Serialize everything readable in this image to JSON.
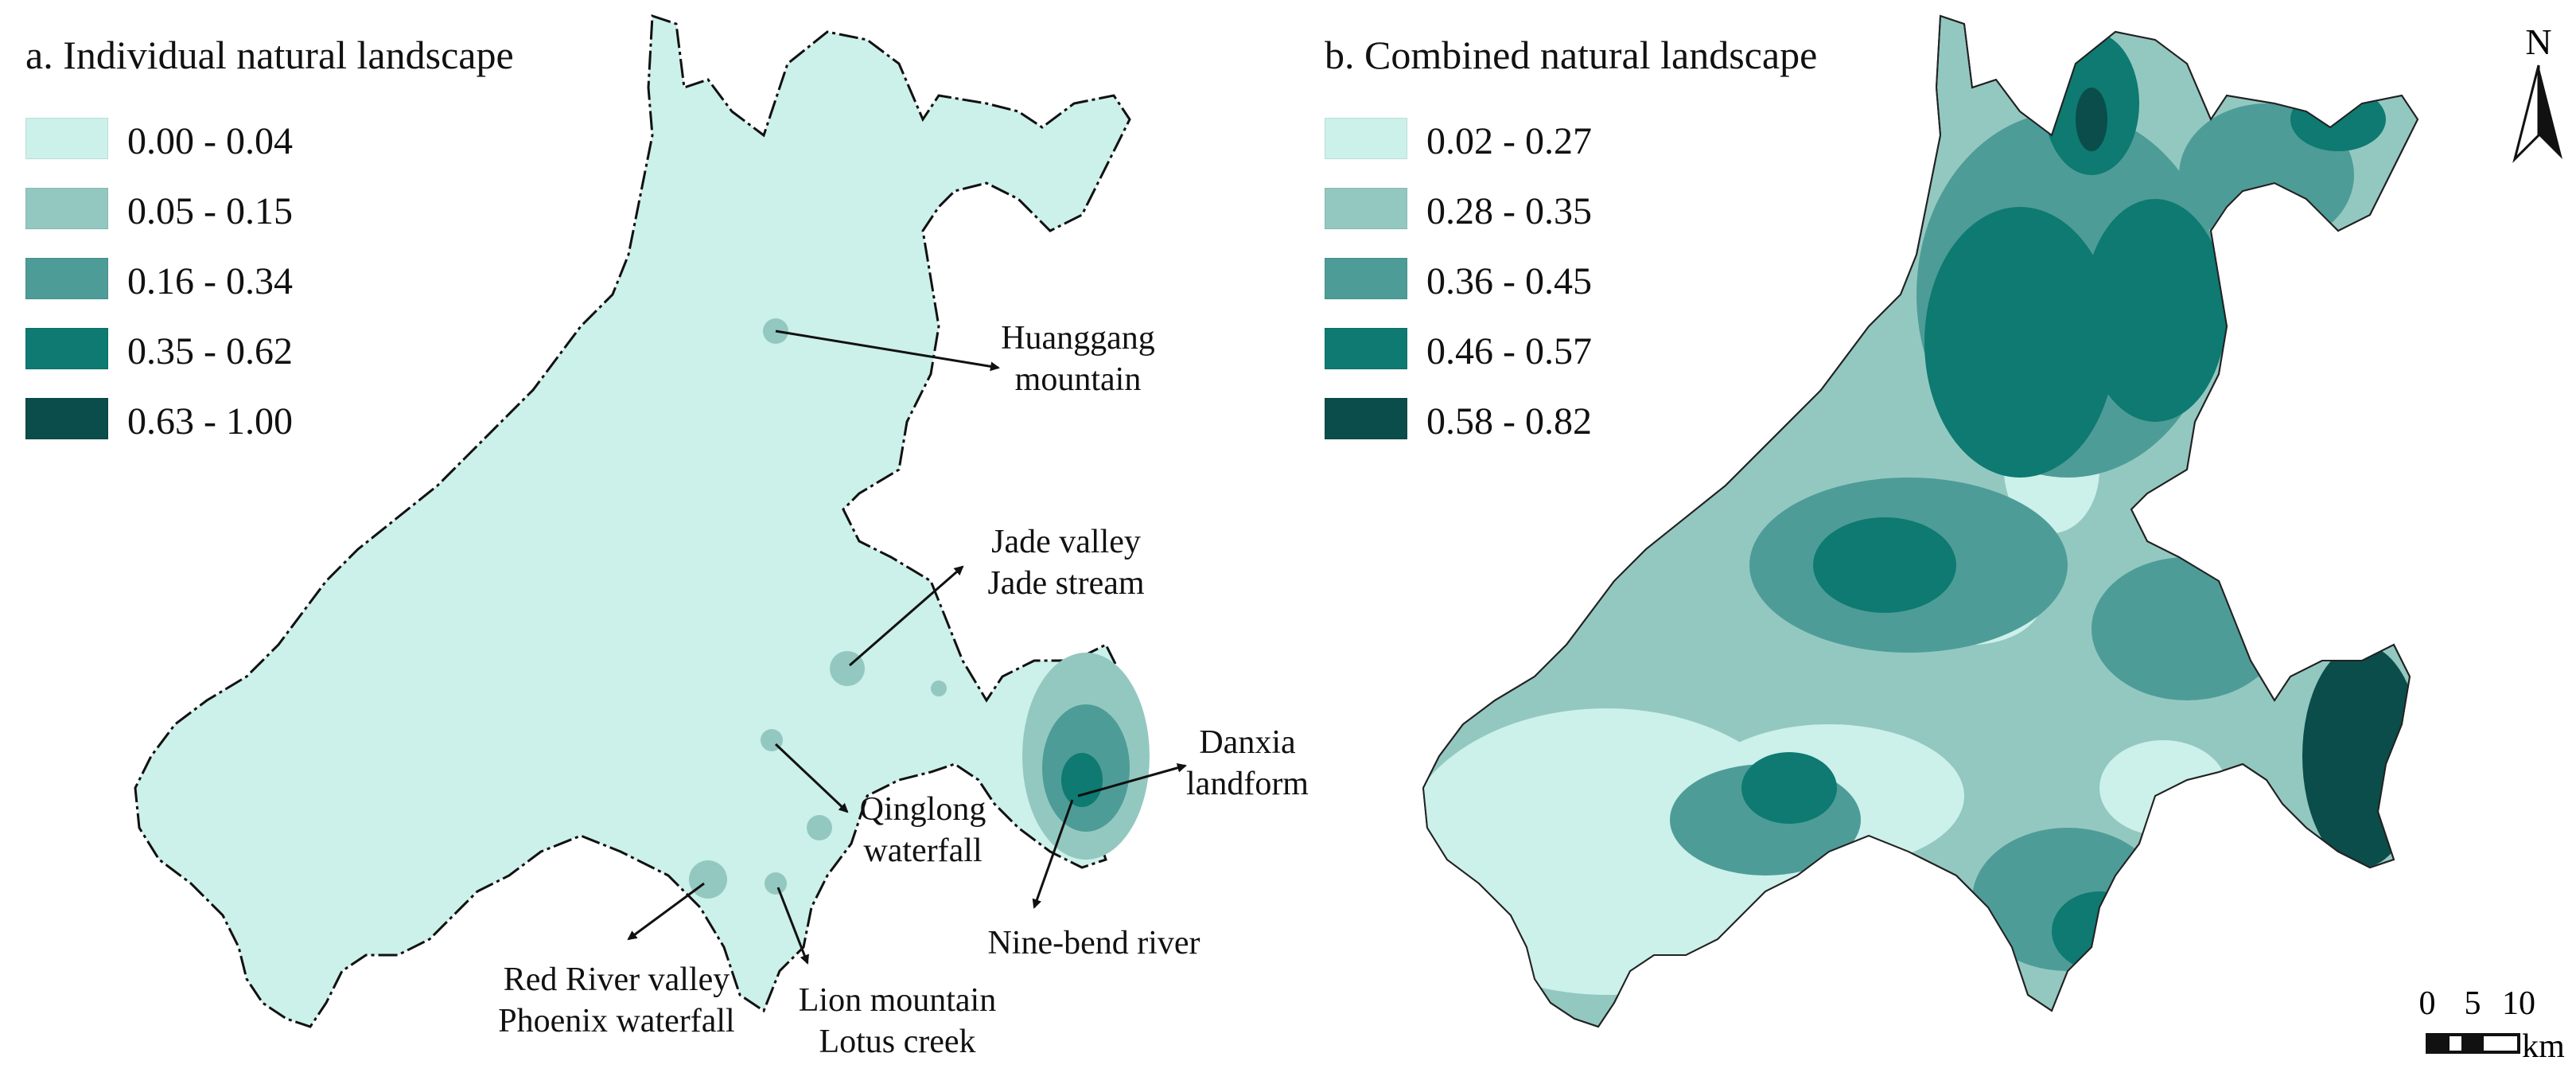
{
  "panel_a": {
    "title": "a. Individual natural landscape",
    "legend": [
      {
        "label": "0.00 - 0.04",
        "color": "#ccf0ea"
      },
      {
        "label": "0.05 - 0.15",
        "color": "#93c8c1"
      },
      {
        "label": "0.16 - 0.34",
        "color": "#4e9c97"
      },
      {
        "label": "0.35 - 0.62",
        "color": "#0e7a72"
      },
      {
        "label": "0.63 - 1.00",
        "color": "#0a4d4a"
      }
    ],
    "annotations": [
      {
        "line1": "Huanggang",
        "line2": "mountain"
      },
      {
        "line1": "Jade valley",
        "line2": "Jade stream"
      },
      {
        "line1": "Danxia",
        "line2": "landform"
      },
      {
        "line1": "Qinglong",
        "line2": "waterfall"
      },
      {
        "line1": "Nine-bend river",
        "line2": ""
      },
      {
        "line1": "Red River valley",
        "line2": "Phoenix waterfall"
      },
      {
        "line1": "Lion mountain",
        "line2": "Lotus creek"
      }
    ]
  },
  "panel_b": {
    "title": "b. Combined natural landscape",
    "legend": [
      {
        "label": "0.02 - 0.27",
        "color": "#ccf0ea"
      },
      {
        "label": "0.28 - 0.35",
        "color": "#93c8c1"
      },
      {
        "label": "0.36 - 0.45",
        "color": "#4e9c97"
      },
      {
        "label": "0.46 - 0.57",
        "color": "#0e7a72"
      },
      {
        "label": "0.58 - 0.82",
        "color": "#0a4d4a"
      }
    ]
  },
  "north_arrow": {
    "label": "N"
  },
  "scale_bar": {
    "ticks": [
      "0",
      "5",
      "10"
    ],
    "unit": "km"
  }
}
